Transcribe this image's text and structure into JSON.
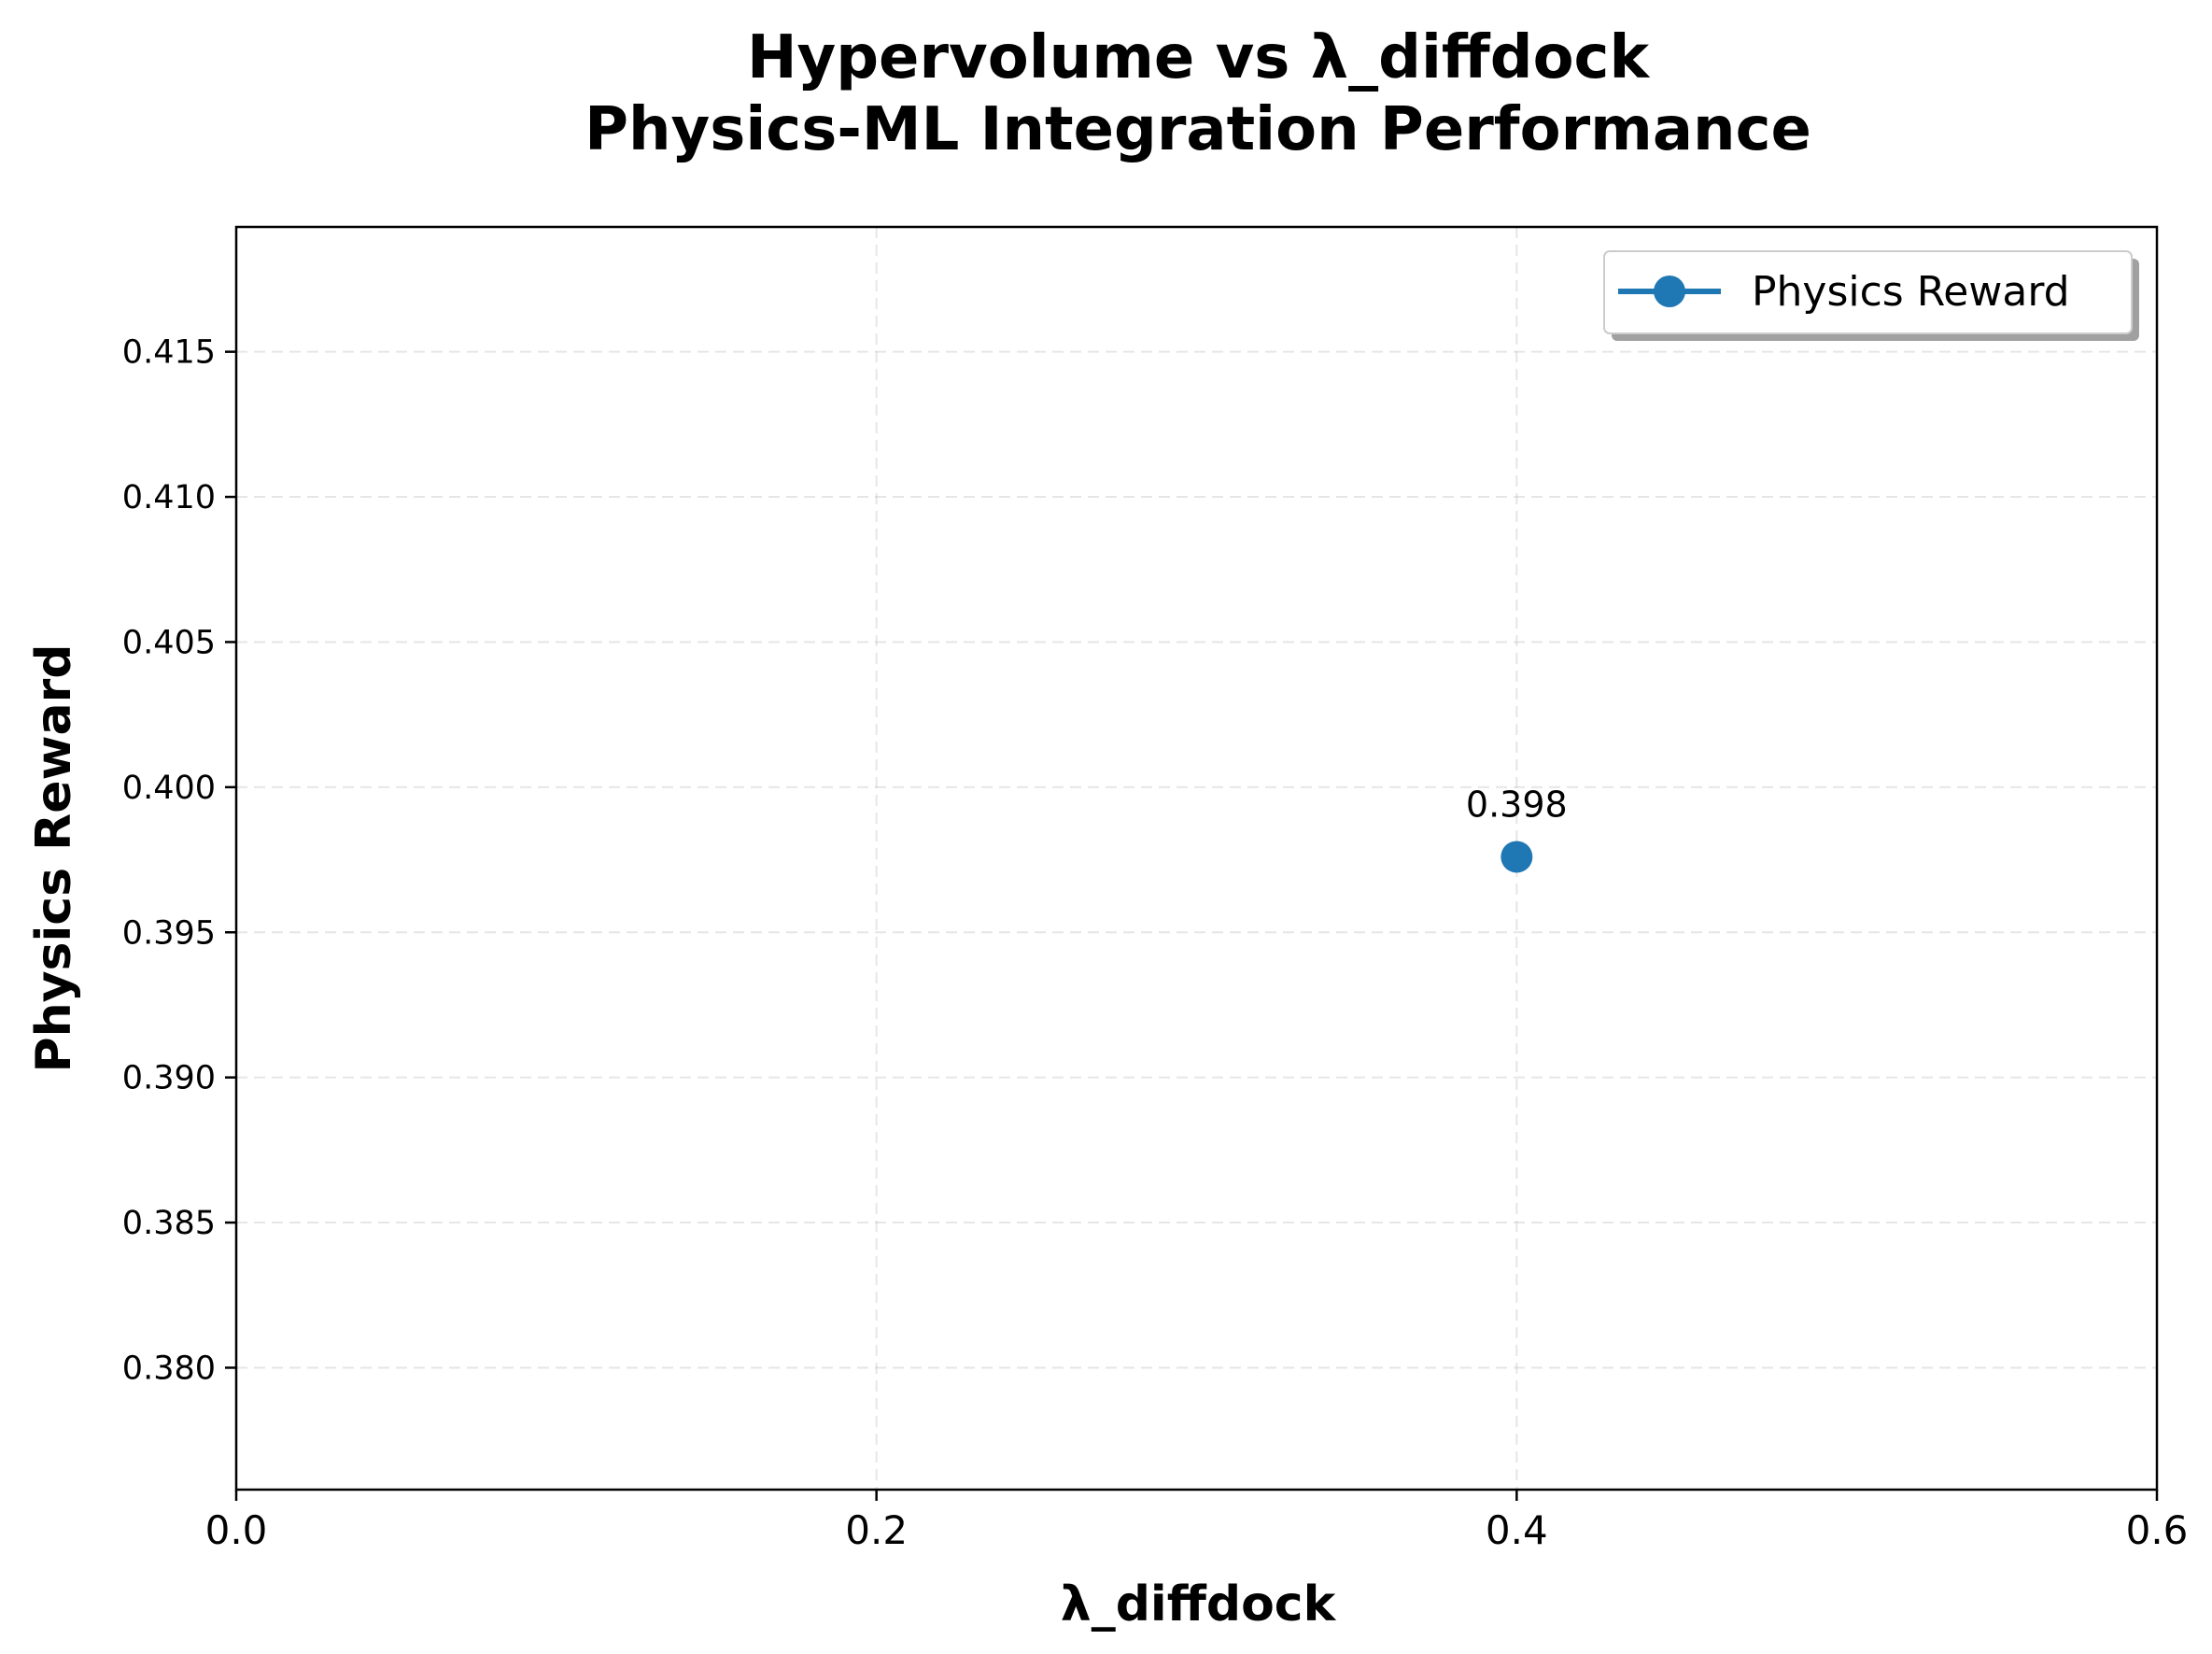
{
  "chart_data": {
    "type": "line",
    "title_lines": [
      "Hypervolume vs λ_diffdock",
      "Physics-ML Integration Performance"
    ],
    "xlabel": "λ_diffdock",
    "ylabel": "Physics Reward",
    "xlim": [
      0.0,
      0.6
    ],
    "ylim": [
      0.3758,
      0.4193
    ],
    "xticks": [
      0.0,
      0.2,
      0.4,
      0.6
    ],
    "xtick_labels": [
      "0.0",
      "0.2",
      "0.4",
      "0.6"
    ],
    "yticks": [
      0.38,
      0.385,
      0.39,
      0.395,
      0.4,
      0.405,
      0.41,
      0.415
    ],
    "ytick_labels": [
      "0.380",
      "0.385",
      "0.390",
      "0.395",
      "0.400",
      "0.405",
      "0.410",
      "0.415"
    ],
    "grid": true,
    "legend_position": "top-right",
    "series": [
      {
        "name": "Physics Reward",
        "color": "#1f77b4",
        "marker": "circle",
        "x": [
          0.4
        ],
        "y": [
          0.3976
        ],
        "point_labels": [
          "0.398"
        ]
      }
    ]
  }
}
